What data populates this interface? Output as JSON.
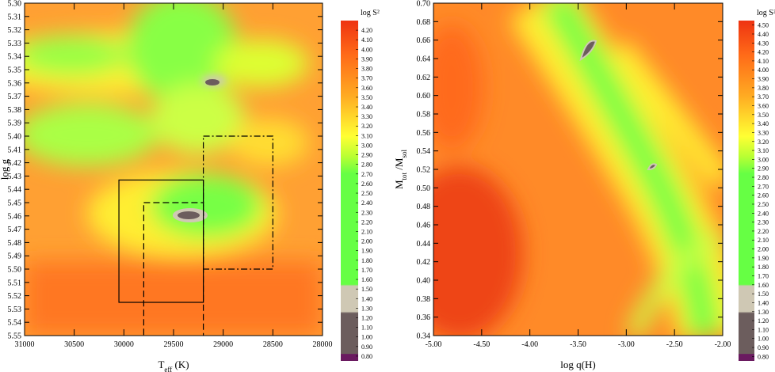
{
  "chart_data": [
    {
      "type": "heatmap",
      "xlabel": {
        "text": "T",
        "sub": "eff",
        "suffix": " (K)"
      },
      "ylabel": {
        "text": "log g"
      },
      "xlim": [
        31000,
        28000
      ],
      "ylim": [
        5.55,
        5.3
      ],
      "xticks": [
        31000,
        30500,
        30000,
        29500,
        29000,
        28500,
        28000
      ],
      "yticks": [
        {
          "value": 5.3,
          "label": "5.30"
        },
        {
          "value": 5.31,
          "label": "5.31"
        },
        {
          "value": 5.32,
          "label": "5.32"
        },
        {
          "value": 5.33,
          "label": "5.33"
        },
        {
          "value": 5.34,
          "label": "5.34"
        },
        {
          "value": 5.35,
          "label": "5.35"
        },
        {
          "value": 5.36,
          "label": "5.36"
        },
        {
          "value": 5.37,
          "label": "5.37"
        },
        {
          "value": 5.38,
          "label": "5.38"
        },
        {
          "value": 5.39,
          "label": "5.39"
        },
        {
          "value": 5.4,
          "label": "5.40"
        },
        {
          "value": 5.41,
          "label": "5.41"
        },
        {
          "value": 5.42,
          "label": "5.42"
        },
        {
          "value": 5.43,
          "label": "5.43"
        },
        {
          "value": 5.44,
          "label": "5.44"
        },
        {
          "value": 5.45,
          "label": "5.45"
        },
        {
          "value": 5.46,
          "label": "5.46"
        },
        {
          "value": 5.47,
          "label": "5.47"
        },
        {
          "value": 5.48,
          "label": "5.48"
        },
        {
          "value": 5.49,
          "label": "5.49"
        },
        {
          "value": 5.5,
          "label": "5.50"
        },
        {
          "value": 5.51,
          "label": "5.51"
        },
        {
          "value": 5.52,
          "label": "5.52"
        },
        {
          "value": 5.53,
          "label": "5.53"
        },
        {
          "value": 5.54,
          "label": "5.54"
        },
        {
          "value": 5.55,
          "label": "5.55"
        }
      ],
      "boxes": [
        {
          "x": [
            30050,
            29200
          ],
          "y": [
            5.433,
            5.525
          ],
          "style": "solid"
        },
        {
          "x": [
            29800,
            29200
          ],
          "y": [
            5.45,
            5.555
          ],
          "style": "dashed"
        },
        {
          "x": [
            29200,
            28500
          ],
          "y": [
            5.4,
            5.5
          ],
          "style": "dashdot"
        }
      ],
      "colorbar": {
        "label": "log S²",
        "clim": [
          0.75,
          4.3
        ],
        "ticks": [
          {
            "value": 0.8,
            "label": "0.80"
          },
          {
            "value": 0.9,
            "label": "0.90"
          },
          {
            "value": 1.0,
            "label": "1.00"
          },
          {
            "value": 1.1,
            "label": "1.10"
          },
          {
            "value": 1.2,
            "label": "1.20"
          },
          {
            "value": 1.3,
            "label": "1.30"
          },
          {
            "value": 1.4,
            "label": "1.40"
          },
          {
            "value": 1.5,
            "label": "1.50"
          },
          {
            "value": 1.6,
            "label": "1.60"
          },
          {
            "value": 1.7,
            "label": "1.70"
          },
          {
            "value": 1.8,
            "label": "1.80"
          },
          {
            "value": 1.9,
            "label": "1.90"
          },
          {
            "value": 2.0,
            "label": "2.00"
          },
          {
            "value": 2.1,
            "label": "2.10"
          },
          {
            "value": 2.2,
            "label": "2.20"
          },
          {
            "value": 2.3,
            "label": "2.30"
          },
          {
            "value": 2.4,
            "label": "2.40"
          },
          {
            "value": 2.5,
            "label": "2.50"
          },
          {
            "value": 2.6,
            "label": "2.60"
          },
          {
            "value": 2.7,
            "label": "2.70"
          },
          {
            "value": 2.8,
            "label": "2.80"
          },
          {
            "value": 2.9,
            "label": "2.90"
          },
          {
            "value": 3.0,
            "label": "3.00"
          },
          {
            "value": 3.1,
            "label": "3.10"
          },
          {
            "value": 3.2,
            "label": "3.20"
          },
          {
            "value": 3.3,
            "label": "3.30"
          },
          {
            "value": 3.4,
            "label": "3.40"
          },
          {
            "value": 3.5,
            "label": "3.50"
          },
          {
            "value": 3.6,
            "label": "3.60"
          },
          {
            "value": 3.7,
            "label": "3.70"
          },
          {
            "value": 3.8,
            "label": "3.80"
          },
          {
            "value": 3.9,
            "label": "3.90"
          },
          {
            "value": 4.0,
            "label": "4.00"
          },
          {
            "value": 4.1,
            "label": "4.10"
          },
          {
            "value": 4.2,
            "label": "4.20"
          }
        ]
      }
    },
    {
      "type": "heatmap",
      "xlabel": {
        "text": "log q(H)"
      },
      "ylabel": {
        "text": "M",
        "sub": "tot",
        "mid": " /M",
        "sub2": "sol"
      },
      "xlim": [
        -5.0,
        -2.0
      ],
      "ylim": [
        0.34,
        0.7
      ],
      "xticks": [
        {
          "value": -5.0,
          "label": "-5.00"
        },
        {
          "value": -4.5,
          "label": "-4.50"
        },
        {
          "value": -4.0,
          "label": "-4.00"
        },
        {
          "value": -3.5,
          "label": "-3.50"
        },
        {
          "value": -3.0,
          "label": "-3.00"
        },
        {
          "value": -2.5,
          "label": "-2.50"
        },
        {
          "value": -2.0,
          "label": "-2.00"
        }
      ],
      "yticks": [
        {
          "value": 0.34,
          "label": "0.34"
        },
        {
          "value": 0.36,
          "label": "0.36"
        },
        {
          "value": 0.38,
          "label": "0.38"
        },
        {
          "value": 0.4,
          "label": "0.40"
        },
        {
          "value": 0.42,
          "label": "0.42"
        },
        {
          "value": 0.44,
          "label": "0.44"
        },
        {
          "value": 0.46,
          "label": "0.46"
        },
        {
          "value": 0.48,
          "label": "0.48"
        },
        {
          "value": 0.5,
          "label": "0.50"
        },
        {
          "value": 0.52,
          "label": "0.52"
        },
        {
          "value": 0.54,
          "label": "0.54"
        },
        {
          "value": 0.56,
          "label": "0.56"
        },
        {
          "value": 0.58,
          "label": "0.58"
        },
        {
          "value": 0.6,
          "label": "0.60"
        },
        {
          "value": 0.62,
          "label": "0.62"
        },
        {
          "value": 0.64,
          "label": "0.64"
        },
        {
          "value": 0.66,
          "label": "0.66"
        },
        {
          "value": 0.68,
          "label": "0.68"
        },
        {
          "value": 0.7,
          "label": "0.70"
        }
      ],
      "colorbar": {
        "label": "log S²",
        "clim": [
          0.75,
          4.55
        ],
        "ticks": [
          {
            "value": 0.8,
            "label": "0.80"
          },
          {
            "value": 0.9,
            "label": "0.90"
          },
          {
            "value": 1.0,
            "label": "1.00"
          },
          {
            "value": 1.1,
            "label": "1.10"
          },
          {
            "value": 1.2,
            "label": "1.20"
          },
          {
            "value": 1.3,
            "label": "1.30"
          },
          {
            "value": 1.4,
            "label": "1.40"
          },
          {
            "value": 1.5,
            "label": "1.50"
          },
          {
            "value": 1.6,
            "label": "1.60"
          },
          {
            "value": 1.7,
            "label": "1.70"
          },
          {
            "value": 1.8,
            "label": "1.80"
          },
          {
            "value": 1.9,
            "label": "1.90"
          },
          {
            "value": 2.0,
            "label": "2.00"
          },
          {
            "value": 2.1,
            "label": "2.10"
          },
          {
            "value": 2.2,
            "label": "2.20"
          },
          {
            "value": 2.3,
            "label": "2.30"
          },
          {
            "value": 2.4,
            "label": "2.40"
          },
          {
            "value": 2.5,
            "label": "2.50"
          },
          {
            "value": 2.6,
            "label": "2.60"
          },
          {
            "value": 2.7,
            "label": "2.70"
          },
          {
            "value": 2.8,
            "label": "2.80"
          },
          {
            "value": 2.9,
            "label": "2.90"
          },
          {
            "value": 3.0,
            "label": "3.00"
          },
          {
            "value": 3.1,
            "label": "3.10"
          },
          {
            "value": 3.2,
            "label": "3.20"
          },
          {
            "value": 3.3,
            "label": "3.30"
          },
          {
            "value": 3.4,
            "label": "3.40"
          },
          {
            "value": 3.5,
            "label": "3.50"
          },
          {
            "value": 3.6,
            "label": "3.60"
          },
          {
            "value": 3.7,
            "label": "3.70"
          },
          {
            "value": 3.8,
            "label": "3.80"
          },
          {
            "value": 3.9,
            "label": "3.90"
          },
          {
            "value": 4.0,
            "label": "4.00"
          },
          {
            "value": 4.1,
            "label": "4.10"
          },
          {
            "value": 4.2,
            "label": "4.20"
          },
          {
            "value": 4.3,
            "label": "4.30"
          },
          {
            "value": 4.4,
            "label": "4.40"
          },
          {
            "value": 4.5,
            "label": "4.50"
          }
        ]
      }
    }
  ]
}
